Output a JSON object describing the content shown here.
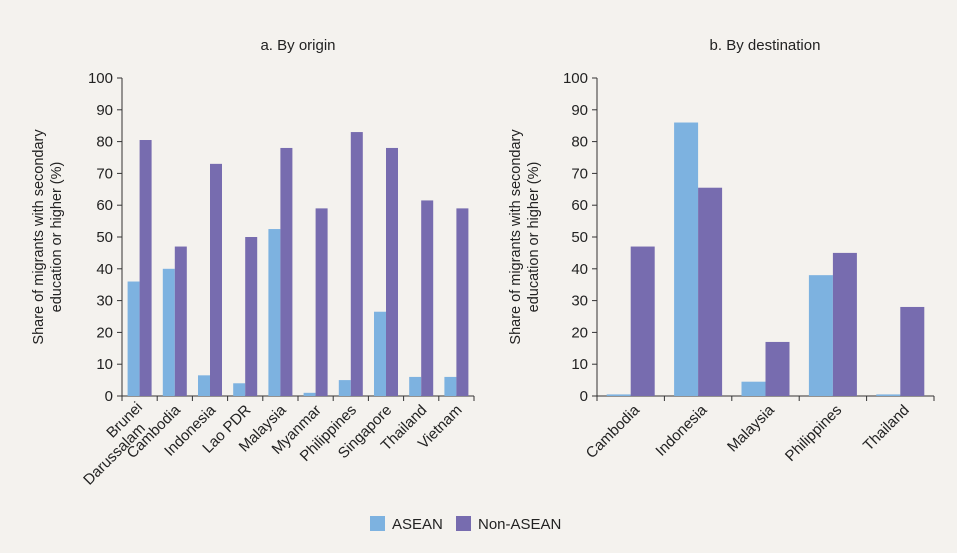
{
  "colors": {
    "background": "#f4f2ee",
    "asean": "#7db2e0",
    "non_asean": "#776caf",
    "axis": "#333333"
  },
  "legend": {
    "asean_label": "ASEAN",
    "non_asean_label": "Non-ASEAN",
    "placement": "bottom-center"
  },
  "chart_data": [
    {
      "type": "bar",
      "title": "a. By origin",
      "ylabel_lines": [
        "Share of migrants with secondary",
        "education or higher (%)"
      ],
      "ylim": [
        0,
        100
      ],
      "yticks": [
        0,
        10,
        20,
        30,
        40,
        50,
        60,
        70,
        80,
        90,
        100
      ],
      "grid": false,
      "categories": [
        [
          "Brunei",
          "Darussalam"
        ],
        [
          "Cambodia"
        ],
        [
          "Indonesia"
        ],
        [
          "Lao PDR"
        ],
        [
          "Malaysia"
        ],
        [
          "Myanmar"
        ],
        [
          "Philippines"
        ],
        [
          "Singapore"
        ],
        [
          "Thailand"
        ],
        [
          "Vietnam"
        ]
      ],
      "series": [
        {
          "name": "ASEAN",
          "values": [
            36,
            40,
            6.5,
            4,
            52.5,
            1,
            5,
            26.5,
            6,
            6
          ]
        },
        {
          "name": "Non-ASEAN",
          "values": [
            80.5,
            47,
            73,
            50,
            78,
            59,
            83,
            78,
            61.5,
            59
          ]
        }
      ]
    },
    {
      "type": "bar",
      "title": "b. By destination",
      "ylabel_lines": [
        "Share of migrants with secondary",
        "education or higher (%)"
      ],
      "ylim": [
        0,
        100
      ],
      "yticks": [
        0,
        10,
        20,
        30,
        40,
        50,
        60,
        70,
        80,
        90,
        100
      ],
      "grid": false,
      "categories": [
        [
          "Cambodia"
        ],
        [
          "Indonesia"
        ],
        [
          "Malaysia"
        ],
        [
          "Philippines"
        ],
        [
          "Thailand"
        ]
      ],
      "series": [
        {
          "name": "ASEAN",
          "values": [
            0.5,
            86,
            4.5,
            38,
            0.5
          ]
        },
        {
          "name": "Non-ASEAN",
          "values": [
            47,
            65.5,
            17,
            45,
            28
          ]
        }
      ]
    }
  ]
}
